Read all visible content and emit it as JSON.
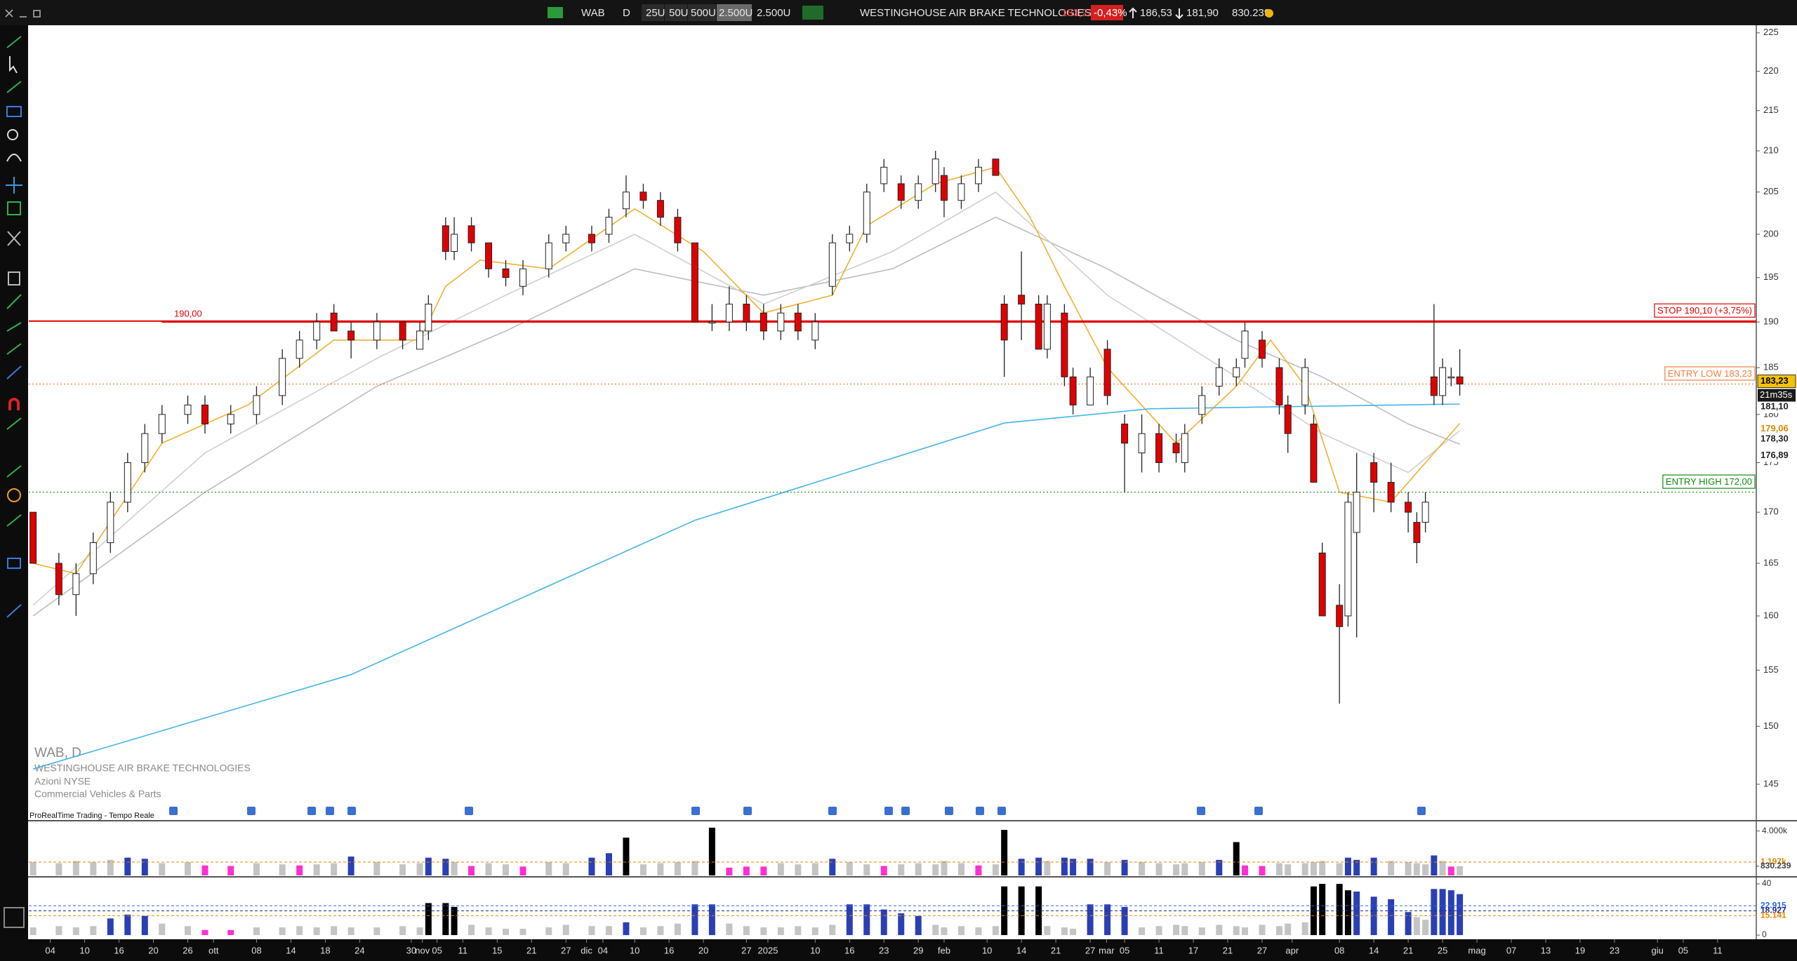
{
  "toolbar": {
    "symbol": "WAB",
    "timeframe": "D",
    "units": [
      "25U",
      "50U",
      "500U",
      "2.500U"
    ],
    "unit_select": "2.500U",
    "name": "WESTINGHOUSE AIR BRAKE TECHNOLOGIES",
    "price": "183,23",
    "change": "-0,43%",
    "high": "186,53",
    "low": "181,90",
    "volume": "830.239"
  },
  "info": {
    "title": "WAB, D",
    "name": "WESTINGHOUSE AIR BRAKE TECHNOLOGIES",
    "market": "Azioni NYSE",
    "sector": "Commercial Vehicles & Parts",
    "source": "ProRealTime Trading - Tempo Reale"
  },
  "chart_data": {
    "type": "candlestick",
    "log": true,
    "xlim": [
      -0.5,
      200.5
    ],
    "ylim": [
      142,
      226
    ],
    "yticks": [
      145,
      150,
      155,
      160,
      165,
      170,
      175,
      180,
      185,
      190,
      195,
      200,
      205,
      210,
      215,
      220,
      225
    ],
    "xticks": [
      {
        "value": 2,
        "label": "04"
      },
      {
        "value": 6,
        "label": "10"
      },
      {
        "value": 10,
        "label": "16"
      },
      {
        "value": 14,
        "label": "20"
      },
      {
        "value": 18,
        "label": "26"
      },
      {
        "value": 21,
        "label": "ott"
      },
      {
        "value": 26,
        "label": "08"
      },
      {
        "value": 30,
        "label": "14"
      },
      {
        "value": 34,
        "label": "18"
      },
      {
        "value": 38,
        "label": "24"
      },
      {
        "value": 44,
        "label": "30"
      },
      {
        "value": 45.3,
        "label": "nov"
      },
      {
        "value": 47,
        "label": "05"
      },
      {
        "value": 50,
        "label": "11"
      },
      {
        "value": 54,
        "label": "15"
      },
      {
        "value": 58,
        "label": "21"
      },
      {
        "value": 62,
        "label": "27"
      },
      {
        "value": 64.4,
        "label": "dic"
      },
      {
        "value": 66.3,
        "label": "04"
      },
      {
        "value": 70,
        "label": "10"
      },
      {
        "value": 74,
        "label": "16"
      },
      {
        "value": 78,
        "label": "20"
      },
      {
        "value": 83,
        "label": "27"
      },
      {
        "value": 85.5,
        "label": "2025"
      },
      {
        "value": 91,
        "label": "10"
      },
      {
        "value": 95,
        "label": "16"
      },
      {
        "value": 99,
        "label": "23"
      },
      {
        "value": 103,
        "label": "29"
      },
      {
        "value": 106,
        "label": "feb"
      },
      {
        "value": 111,
        "label": "10"
      },
      {
        "value": 115,
        "label": "14"
      },
      {
        "value": 119,
        "label": "21"
      },
      {
        "value": 123,
        "label": "27"
      },
      {
        "value": 124.9,
        "label": "mar"
      },
      {
        "value": 127,
        "label": "05"
      },
      {
        "value": 131,
        "label": "11"
      },
      {
        "value": 135,
        "label": "17"
      },
      {
        "value": 139,
        "label": "21"
      },
      {
        "value": 143,
        "label": "27"
      },
      {
        "value": 146.5,
        "label": "apr"
      },
      {
        "value": 152,
        "label": "08"
      },
      {
        "value": 156,
        "label": "14"
      },
      {
        "value": 160,
        "label": "21"
      },
      {
        "value": 164,
        "label": "25"
      },
      {
        "value": 168,
        "label": "mag"
      },
      {
        "value": 172,
        "label": "07"
      },
      {
        "value": 176,
        "label": "13"
      },
      {
        "value": 180,
        "label": "19"
      },
      {
        "value": 184,
        "label": "23"
      },
      {
        "value": 189,
        "label": "giu"
      },
      {
        "value": 192,
        "label": "05"
      },
      {
        "value": 196,
        "label": "11"
      }
    ],
    "up_color": "#ffffff",
    "down_color": "#e00000",
    "x": [
      0,
      3,
      5,
      7,
      9,
      11,
      13,
      15,
      18,
      20,
      23,
      26,
      29,
      31,
      33,
      35,
      37,
      40,
      43,
      45,
      46,
      48,
      49,
      51,
      53,
      55,
      57,
      60,
      62,
      65,
      67,
      69,
      71,
      73,
      75,
      77,
      79,
      81,
      83,
      85,
      87,
      89,
      91,
      93,
      95,
      97,
      99,
      101,
      103,
      105,
      106,
      108,
      110,
      112,
      113,
      115,
      117,
      118,
      120,
      121,
      123,
      125,
      127,
      129,
      131,
      133,
      134,
      136,
      138,
      140,
      141,
      143,
      145,
      146,
      148,
      149,
      150,
      152,
      153,
      154,
      156,
      158,
      160,
      161,
      162,
      163,
      164,
      165,
      166
    ],
    "open": [
      170,
      165,
      162,
      164,
      167,
      171,
      175,
      178,
      180,
      181,
      179,
      180,
      182,
      186,
      188,
      191,
      189,
      188,
      190,
      187,
      189,
      201,
      198,
      201,
      199,
      196,
      194,
      196,
      199,
      200,
      200,
      203,
      205,
      204,
      202,
      199,
      190,
      190,
      192,
      191,
      189,
      191,
      188,
      194,
      199,
      200,
      206,
      206,
      204,
      206,
      207,
      204,
      206,
      209,
      192,
      193,
      192,
      187,
      191,
      184,
      181,
      187,
      179,
      176,
      178,
      177,
      175,
      180,
      183,
      184,
      186,
      188,
      185,
      181,
      181,
      179,
      166,
      161,
      160,
      168,
      175,
      173,
      171,
      169,
      169,
      184,
      182,
      184,
      184
    ],
    "high": [
      170,
      166,
      165,
      168,
      172,
      176,
      179,
      181,
      182,
      182,
      181,
      183,
      187,
      189,
      191,
      192,
      190,
      191,
      190,
      190,
      193,
      202,
      202,
      202,
      199,
      197,
      197,
      200,
      201,
      201,
      203,
      207,
      206,
      205,
      203,
      199,
      192,
      194,
      193,
      192,
      192,
      192,
      191,
      200,
      201,
      206,
      209,
      207,
      207,
      210,
      208,
      207,
      209,
      209,
      193,
      198,
      193,
      193,
      192,
      185,
      185,
      188,
      180,
      180,
      179,
      178,
      179,
      183,
      186,
      186,
      190,
      189,
      186,
      182,
      186,
      180,
      167,
      163,
      172,
      176,
      176,
      175,
      172,
      170,
      172,
      192,
      186,
      185,
      187
    ],
    "low": [
      165,
      161,
      160,
      163,
      166,
      170,
      174,
      177,
      179,
      178,
      178,
      179,
      181,
      185,
      187,
      189,
      186,
      187,
      187,
      187,
      188,
      197,
      197,
      198,
      195,
      194,
      193,
      195,
      198,
      198,
      199,
      202,
      203,
      201,
      198,
      190,
      189,
      189,
      189,
      188,
      188,
      188,
      187,
      193,
      198,
      199,
      205,
      203,
      203,
      205,
      202,
      203,
      205,
      207,
      184,
      188,
      187,
      186,
      183,
      180,
      181,
      181,
      172,
      174,
      174,
      175,
      174,
      179,
      182,
      183,
      185,
      185,
      180,
      176,
      180,
      173,
      160,
      152,
      159,
      158,
      170,
      170,
      168,
      165,
      168,
      181,
      181,
      183,
      182
    ],
    "close": [
      165,
      162,
      164,
      167,
      171,
      175,
      178,
      180,
      181,
      179,
      180,
      182,
      186,
      188,
      190,
      189,
      188,
      190,
      188,
      189,
      192,
      198,
      200,
      199,
      196,
      195,
      196,
      199,
      200,
      199,
      202,
      205,
      204,
      202,
      199,
      190,
      190,
      192,
      190,
      189,
      191,
      189,
      190,
      199,
      200,
      205,
      208,
      204,
      206,
      209,
      204,
      206,
      208,
      207,
      188,
      192,
      187,
      192,
      184,
      181,
      184,
      182,
      177,
      178,
      175,
      176,
      178,
      182,
      185,
      185,
      189,
      186,
      181,
      178,
      185,
      173,
      160,
      159,
      171,
      172,
      173,
      171,
      170,
      167,
      171,
      182,
      185,
      184,
      183.23
    ],
    "series": [
      {
        "color": "#bdbdbd",
        "x": [
          0,
          20,
          40,
          55,
          70,
          85,
          100,
          112,
          125,
          140,
          150,
          160,
          166
        ],
        "values": [
          160,
          172,
          183,
          189,
          196,
          193,
          196,
          202,
          196,
          188,
          184,
          179,
          176.89
        ]
      },
      {
        "color": "#cfcfcf",
        "x": [
          0,
          20,
          40,
          55,
          70,
          85,
          100,
          112,
          125,
          140,
          150,
          160,
          166
        ],
        "values": [
          161,
          176,
          186,
          193,
          200,
          192,
          198,
          205,
          193,
          184,
          178,
          174,
          178.3
        ]
      },
      {
        "color": "#f0b030",
        "x": [
          0,
          5,
          15,
          25,
          35,
          45,
          48,
          52,
          60,
          70,
          78,
          85,
          93,
          97,
          105,
          112,
          116,
          120,
          125,
          133,
          140,
          144,
          148,
          152,
          158,
          166
        ],
        "values": [
          165,
          164,
          177,
          181,
          188,
          188,
          194,
          197,
          196,
          203,
          198,
          191,
          193,
          201,
          206,
          208,
          202,
          194,
          185,
          177,
          183,
          188,
          183,
          172,
          171,
          179.06
        ]
      },
      {
        "color": "#45b4e6",
        "x": [
          0,
          37,
          77,
          113,
          130,
          166
        ],
        "values": [
          146.3,
          154.6,
          169.2,
          179.1,
          180.6,
          181.1
        ]
      }
    ],
    "hlines": [
      {
        "value": 190,
        "label": "190,00",
        "color": "#e00000",
        "style": "solid",
        "side": "left"
      },
      {
        "value": 190.1,
        "label": "STOP 190,10 (+3,75%)",
        "color": "#e00000",
        "style": "solid",
        "side": "right"
      },
      {
        "value": 183.23,
        "label": "ENTRY LOW 183,23",
        "color": "#f08040",
        "style": "dotted",
        "side": "right"
      },
      {
        "value": 172,
        "label": "ENTRY HIGH 172,00",
        "color": "#138a13",
        "style": "dotted",
        "side": "right"
      }
    ],
    "last_labels": [
      {
        "value": 183.23,
        "label": "183,23",
        "color": "#000000",
        "bg": "#f5c400"
      },
      {
        "value": 181.1,
        "label": "181,10",
        "color": "#222222",
        "bg": "#ffffff"
      },
      {
        "value": 179.06,
        "label": "179,06",
        "color": "#e08a00",
        "bg": "#ffffff"
      },
      {
        "value": 178.3,
        "label": "178,30",
        "color": "#222222",
        "bg": "#ffffff"
      },
      {
        "value": 176.89,
        "label": "176,89",
        "color": "#222222",
        "bg": "#ffffff"
      }
    ],
    "countdown": "21m35s",
    "volume": {
      "ylim": [
        0,
        4800
      ],
      "yticks": [
        {
          "value": 4000,
          "label": "4.000k"
        }
      ],
      "palette": {
        "g": "#c4c4c4",
        "b": "#2b3fb4",
        "m": "#ff2fd2",
        "k": "#000000"
      },
      "color_codes": "gggggbbggmmggmggbgggbbgmggmggbbkggggkmmmgggbggmgggggmgkbbgbbbgbgggggbkmmggggggbbbggggbgmg",
      "values": [
        1200,
        1100,
        1300,
        1200,
        1400,
        1600,
        1500,
        1100,
        1200,
        900,
        850,
        1100,
        1000,
        900,
        1000,
        1100,
        1700,
        1200,
        1000,
        1100,
        1600,
        1500,
        1200,
        850,
        1100,
        1000,
        800,
        1200,
        1100,
        1600,
        2000,
        3400,
        1000,
        1100,
        1200,
        1300,
        4300,
        700,
        800,
        800,
        1100,
        1000,
        1100,
        1500,
        1200,
        1000,
        850,
        1000,
        1100,
        1000,
        1300,
        1100,
        900,
        1000,
        4100,
        1500,
        1600,
        1300,
        1600,
        1500,
        1500,
        1200,
        1400,
        1200,
        1100,
        1000,
        1100,
        1200,
        1400,
        3000,
        900,
        850,
        1100,
        1000,
        1100,
        1200,
        1300,
        1100,
        1600,
        1400,
        1600,
        1300,
        1200,
        1100,
        1000,
        1800,
        1300,
        800,
        830.239
      ],
      "levels": [
        {
          "value": 1197,
          "label": "1.197k",
          "color": "#e08a00",
          "dashed": true
        },
        {
          "value": 830.239,
          "label": "830.239",
          "color": "#444444",
          "dashed": false
        }
      ]
    },
    "oscillator": {
      "ylim": [
        -2.7,
        44.4
      ],
      "yticks": [
        0,
        40
      ],
      "palette": {
        "g": "#c4c4c4",
        "b": "#2b3fb4",
        "m": "#ff2fd2",
        "k": "#000000"
      },
      "color_codes": "ggggbbbggmmgggggggggkkkggggggggbgggbbgggggggbbbbbgggggkkkgggbbbggggggggggggkkkkbbbbggbbbb",
      "values": [
        6,
        7,
        6,
        7,
        13,
        16,
        15,
        9,
        7,
        4,
        4,
        6,
        6,
        7,
        6,
        7,
        6,
        6,
        7,
        6,
        25,
        25,
        22,
        8,
        6,
        5,
        5,
        6,
        8,
        7,
        7,
        10,
        6,
        7,
        9,
        24,
        24,
        9,
        7,
        6,
        6,
        7,
        6,
        8,
        24,
        24,
        20,
        17,
        15,
        8,
        6,
        7,
        6,
        7,
        38,
        38,
        38,
        7,
        6,
        5,
        24,
        24,
        22,
        6,
        7,
        8,
        7,
        6,
        8,
        7,
        6,
        8,
        7,
        9,
        10,
        38,
        40,
        40,
        35,
        34,
        30,
        28,
        18,
        14,
        12,
        36,
        36,
        35,
        32
      ],
      "levels": [
        {
          "value": 22.915,
          "label": "22.915",
          "color": "#2b6be0",
          "dashed": true
        },
        {
          "value": 18.927,
          "label": "18.927",
          "color": "#1a2a9a",
          "dashed": true
        },
        {
          "value": 15.141,
          "label": "15.141",
          "color": "#e08a00",
          "dashed": true
        }
      ]
    }
  }
}
